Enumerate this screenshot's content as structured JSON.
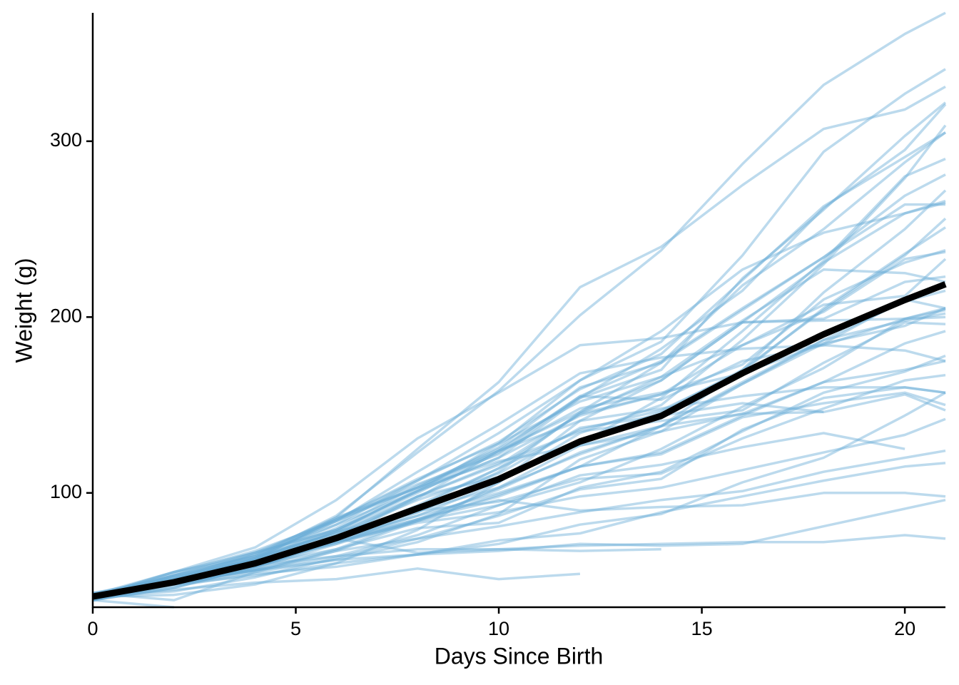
{
  "chart_data": {
    "type": "line",
    "x_label": "Days Since Birth",
    "y_label": "Weight (g)",
    "x": [
      0,
      2,
      4,
      6,
      8,
      10,
      12,
      14,
      16,
      18,
      20,
      21
    ],
    "xlim": [
      0,
      21
    ],
    "xticks": [
      0,
      5,
      10,
      15,
      20
    ],
    "ylim": [
      35,
      373
    ],
    "yticks": [
      100,
      200,
      300
    ],
    "color": "#6baed6",
    "series": [
      {
        "values": [
          42,
          51,
          59,
          64,
          76,
          93,
          106,
          125,
          149,
          171,
          199,
          205
        ]
      },
      {
        "values": [
          40,
          49,
          58,
          72,
          84,
          103,
          122,
          138,
          162,
          187,
          209,
          215
        ]
      },
      {
        "values": [
          43,
          39,
          55,
          67,
          84,
          99,
          115,
          138,
          163,
          187,
          198,
          202
        ]
      },
      {
        "values": [
          42,
          49,
          56,
          67,
          74,
          87,
          102,
          108,
          136,
          154,
          160,
          157
        ]
      },
      {
        "values": [
          41,
          42,
          48,
          60,
          79,
          106,
          141,
          164,
          197,
          199,
          220,
          223
        ]
      },
      {
        "values": [
          41,
          49,
          59,
          74,
          97,
          124,
          141,
          148,
          155,
          160,
          160,
          157
        ]
      },
      {
        "values": [
          41,
          49,
          57,
          71,
          89,
          112,
          146,
          174,
          218,
          250,
          288,
          305
        ]
      },
      {
        "values": [
          42,
          50,
          61,
          71,
          84,
          93,
          110,
          116,
          126,
          134,
          125,
          null
        ]
      },
      {
        "values": [
          42,
          51,
          59,
          68,
          85,
          96,
          90,
          92,
          93,
          100,
          100,
          98
        ]
      },
      {
        "values": [
          41,
          44,
          52,
          63,
          74,
          81,
          89,
          96,
          101,
          112,
          120,
          124
        ]
      },
      {
        "values": [
          43,
          51,
          63,
          84,
          112,
          139,
          168,
          177,
          182,
          184,
          181,
          175
        ]
      },
      {
        "values": [
          41,
          49,
          56,
          62,
          72,
          88,
          119,
          135,
          162,
          185,
          195,
          205
        ]
      },
      {
        "values": [
          41,
          48,
          53,
          60,
          65,
          67,
          71,
          70,
          71,
          81,
          91,
          96
        ]
      },
      {
        "values": [
          41,
          49,
          62,
          79,
          101,
          128,
          164,
          192,
          227,
          248,
          259,
          266
        ]
      },
      {
        "values": [
          41,
          49,
          56,
          64,
          68,
          68,
          67,
          68,
          null,
          null,
          null,
          null
        ]
      },
      {
        "values": [
          41,
          45,
          49,
          51,
          57,
          51,
          54,
          null,
          null,
          null,
          null,
          null
        ]
      },
      {
        "values": [
          42,
          51,
          61,
          72,
          83,
          89,
          98,
          103,
          113,
          123,
          133,
          142
        ]
      },
      {
        "values": [
          39,
          35,
          null,
          null,
          null,
          null,
          null,
          null,
          null,
          null,
          null,
          null
        ]
      },
      {
        "values": [
          43,
          48,
          55,
          62,
          65,
          71,
          82,
          88,
          106,
          120,
          144,
          157
        ]
      },
      {
        "values": [
          41,
          47,
          54,
          58,
          65,
          73,
          77,
          89,
          98,
          107,
          115,
          117
        ]
      },
      {
        "values": [
          40,
          50,
          62,
          86,
          125,
          163,
          217,
          240,
          275,
          307,
          318,
          331
        ]
      },
      {
        "values": [
          41,
          55,
          64,
          77,
          90,
          95,
          108,
          111,
          131,
          148,
          164,
          167
        ]
      },
      {
        "values": [
          43,
          52,
          61,
          73,
          90,
          103,
          127,
          135,
          145,
          163,
          170,
          175
        ]
      },
      {
        "values": [
          42,
          52,
          58,
          74,
          66,
          68,
          70,
          71,
          72,
          72,
          76,
          74
        ]
      },
      {
        "values": [
          40,
          49,
          62,
          78,
          102,
          124,
          146,
          164,
          197,
          231,
          259,
          265
        ]
      },
      {
        "values": [
          42,
          48,
          57,
          74,
          93,
          114,
          136,
          147,
          169,
          205,
          236,
          251
        ]
      },
      {
        "values": [
          39,
          46,
          58,
          73,
          87,
          100,
          115,
          123,
          144,
          163,
          185,
          192
        ]
      },
      {
        "values": [
          39,
          46,
          58,
          73,
          92,
          114,
          145,
          156,
          184,
          207,
          212,
          233
        ]
      },
      {
        "values": [
          39,
          48,
          59,
          74,
          87,
          106,
          134,
          150,
          187,
          230,
          279,
          309
        ]
      },
      {
        "values": [
          42,
          48,
          59,
          72,
          85,
          98,
          115,
          122,
          143,
          151,
          157,
          150
        ]
      },
      {
        "values": [
          42,
          53,
          62,
          73,
          85,
          102,
          123,
          138,
          170,
          204,
          235,
          256
        ]
      },
      {
        "values": [
          41,
          49,
          65,
          82,
          107,
          129,
          159,
          179,
          221,
          263,
          291,
          305
        ]
      },
      {
        "values": [
          39,
          50,
          63,
          77,
          96,
          111,
          137,
          144,
          151,
          146,
          156,
          147
        ]
      },
      {
        "values": [
          41,
          49,
          63,
          85,
          107,
          134,
          164,
          186,
          235,
          294,
          327,
          341
        ]
      },
      {
        "values": [
          41,
          53,
          64,
          87,
          123,
          158,
          201,
          238,
          287,
          332,
          361,
          373
        ]
      },
      {
        "values": [
          39,
          48,
          61,
          76,
          98,
          116,
          145,
          166,
          198,
          227,
          225,
          220
        ]
      },
      {
        "values": [
          41,
          48,
          56,
          68,
          80,
          83,
          103,
          112,
          135,
          157,
          169,
          178
        ]
      },
      {
        "values": [
          41,
          49,
          61,
          74,
          98,
          109,
          128,
          154,
          192,
          232,
          280,
          290
        ]
      },
      {
        "values": [
          42,
          50,
          61,
          78,
          89,
          109,
          130,
          146,
          170,
          214,
          250,
          272
        ]
      },
      {
        "values": [
          41,
          55,
          66,
          79,
          101,
          120,
          154,
          182,
          215,
          262,
          295,
          321
        ]
      },
      {
        "values": [
          42,
          51,
          66,
          85,
          103,
          124,
          155,
          153,
          175,
          184,
          199,
          204
        ]
      },
      {
        "values": [
          42,
          49,
          63,
          84,
          103,
          126,
          160,
          174,
          204,
          234,
          269,
          281
        ]
      },
      {
        "values": [
          42,
          55,
          69,
          96,
          131,
          157,
          184,
          188,
          197,
          198,
          199,
          200
        ]
      },
      {
        "values": [
          42,
          51,
          65,
          86,
          103,
          118,
          127,
          138,
          145,
          146,
          null,
          null
        ]
      },
      {
        "values": [
          41,
          50,
          61,
          78,
          98,
          117,
          135,
          141,
          147,
          174,
          197,
          196
        ]
      },
      {
        "values": [
          40,
          52,
          62,
          82,
          101,
          120,
          144,
          156,
          173,
          210,
          231,
          238
        ]
      },
      {
        "values": [
          41,
          53,
          66,
          79,
          100,
          123,
          148,
          157,
          168,
          185,
          210,
          205
        ]
      },
      {
        "values": [
          39,
          50,
          62,
          80,
          104,
          125,
          154,
          170,
          222,
          261,
          303,
          322
        ]
      },
      {
        "values": [
          40,
          53,
          64,
          85,
          108,
          128,
          152,
          166,
          184,
          203,
          233,
          237
        ]
      },
      {
        "values": [
          41,
          54,
          67,
          84,
          105,
          122,
          155,
          175,
          205,
          234,
          264,
          264
        ]
      },
      {
        "color": "#000000",
        "values": [
          41.06,
          49.22,
          59.96,
          74.31,
          91.24,
          107.84,
          129.24,
          143.81,
          168.09,
          190.19,
          209.72,
          218.69
        ]
      }
    ]
  }
}
